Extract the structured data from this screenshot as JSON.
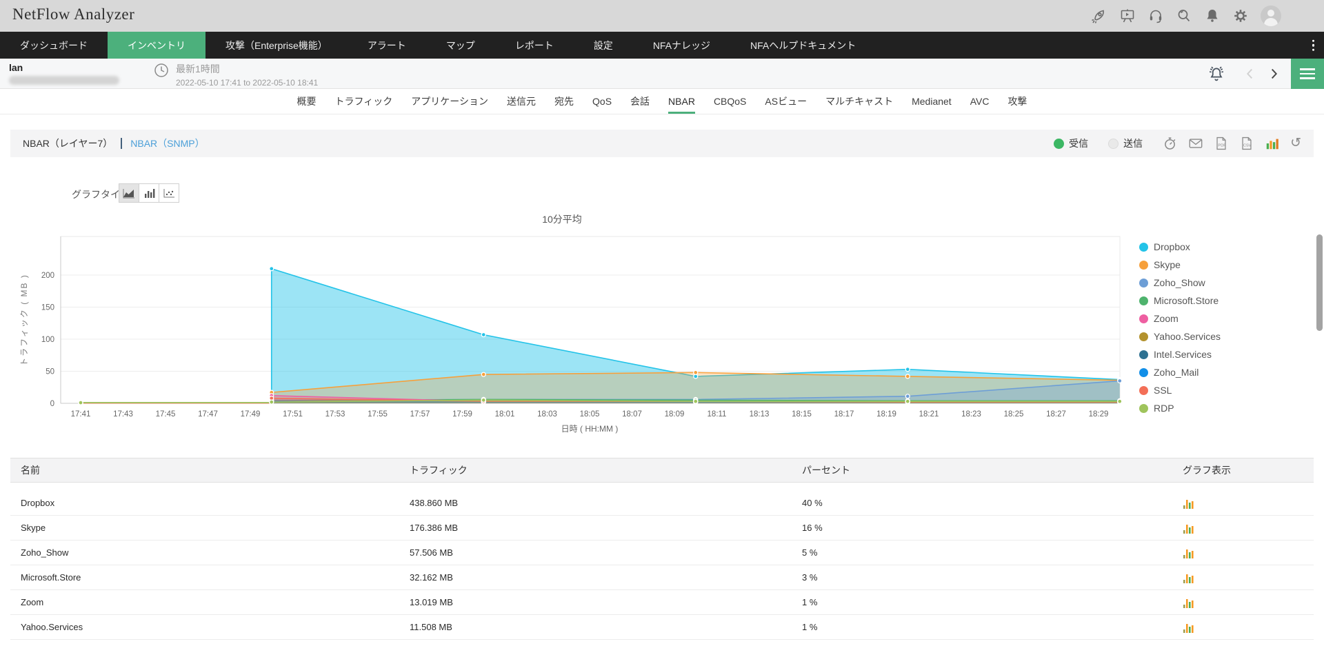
{
  "app": {
    "title": "NetFlow Analyzer"
  },
  "topbar": {
    "icons": [
      "rocket",
      "presentation",
      "headset",
      "search",
      "notifications",
      "settings"
    ]
  },
  "nav": {
    "items": [
      {
        "label": "ダッシュボード",
        "active": false
      },
      {
        "label": "インベントリ",
        "active": true
      },
      {
        "label": "攻撃（Enterprise機能）",
        "active": false
      },
      {
        "label": "アラート",
        "active": false
      },
      {
        "label": "マップ",
        "active": false
      },
      {
        "label": "レポート",
        "active": false
      },
      {
        "label": "設定",
        "active": false
      },
      {
        "label": "NFAナレッジ",
        "active": false
      },
      {
        "label": "NFAヘルプドキュメント",
        "active": false
      }
    ]
  },
  "subheader": {
    "device_name": "lan",
    "time_label": "最新1時間",
    "time_range": "2022-05-10 17:41 to 2022-05-10 18:41"
  },
  "view_tabs": {
    "active": "NBAR",
    "items": [
      "概要",
      "トラフィック",
      "アプリケーション",
      "送信元",
      "宛先",
      "QoS",
      "会話",
      "NBAR",
      "CBQoS",
      "ASビュー",
      "マルチキャスト",
      "Medianet",
      "AVC",
      "攻撃"
    ]
  },
  "section": {
    "title_primary": "NBAR（レイヤー7）",
    "title_secondary": "NBAR（SNMP）",
    "direction_options": [
      {
        "label": "受信",
        "selected": true
      },
      {
        "label": "送信",
        "selected": false
      }
    ],
    "tool_icons": [
      "schedule",
      "email",
      "pdf-export",
      "csv-export",
      "bar-chart",
      "refresh"
    ]
  },
  "graph_type": {
    "label": "グラフタイプ",
    "options": [
      "area",
      "bar",
      "scatter"
    ],
    "active": "area"
  },
  "chart_data": {
    "type": "area",
    "title": "10分平均",
    "xlabel": "日時 ( HH:MM )",
    "ylabel": "トラフィック ( MB )",
    "ylim": [
      0,
      250
    ],
    "yticks": [
      0,
      50,
      100,
      150,
      200
    ],
    "grid": true,
    "legend_position": "right",
    "x_tick_labels": [
      "17:41",
      "17:43",
      "17:45",
      "17:47",
      "17:49",
      "17:51",
      "17:53",
      "17:55",
      "17:57",
      "17:59",
      "18:01",
      "18:03",
      "18:05",
      "18:07",
      "18:09",
      "18:11",
      "18:13",
      "18:15",
      "18:17",
      "18:19",
      "18:21",
      "18:23",
      "18:25",
      "18:27",
      "18:29"
    ],
    "x": [
      "17:41",
      "17:50",
      "18:00",
      "18:10",
      "18:20",
      "18:30"
    ],
    "series": [
      {
        "name": "Dropbox",
        "color": "#23c3e8",
        "values": [
          1,
          210,
          107,
          42,
          53,
          37
        ]
      },
      {
        "name": "Skype",
        "color": "#f6a03b",
        "values": [
          0.5,
          17,
          45,
          48,
          42,
          36
        ]
      },
      {
        "name": "Zoho_Show",
        "color": "#6d9ed6",
        "values": [
          0.3,
          5,
          6,
          6,
          11,
          35
        ]
      },
      {
        "name": "Microsoft.Store",
        "color": "#4eb36d",
        "values": [
          0.4,
          4,
          6,
          5,
          4,
          4
        ]
      },
      {
        "name": "Zoom",
        "color": "#ee5fa1",
        "values": [
          0.3,
          12,
          3,
          2,
          2,
          2
        ]
      },
      {
        "name": "Yahoo.Services",
        "color": "#b3922d",
        "values": [
          1,
          2,
          2,
          2,
          2,
          2
        ]
      },
      {
        "name": "Intel.Services",
        "color": "#2e7191",
        "values": [
          0.3,
          2,
          2,
          2,
          2,
          3
        ]
      },
      {
        "name": "Zoho_Mail",
        "color": "#128fe8",
        "values": [
          0.3,
          3,
          2,
          2,
          2,
          2
        ]
      },
      {
        "name": "SSL",
        "color": "#f36f57",
        "values": [
          0.3,
          8,
          3,
          3,
          2,
          2
        ]
      },
      {
        "name": "RDP",
        "color": "#9fc45c",
        "values": [
          1,
          2,
          5,
          3,
          3,
          3
        ]
      }
    ]
  },
  "table": {
    "columns": [
      "名前",
      "トラフィック",
      "パーセント",
      "グラフ表示"
    ],
    "rows": [
      {
        "name": "Dropbox",
        "traffic": "438.860 MB",
        "percent": "40 %"
      },
      {
        "name": "Skype",
        "traffic": "176.386 MB",
        "percent": "16 %"
      },
      {
        "name": "Zoho_Show",
        "traffic": "57.506 MB",
        "percent": "5 %"
      },
      {
        "name": "Microsoft.Store",
        "traffic": "32.162 MB",
        "percent": "3 %"
      },
      {
        "name": "Zoom",
        "traffic": "13.019 MB",
        "percent": "1 %"
      },
      {
        "name": "Yahoo.Services",
        "traffic": "11.508 MB",
        "percent": "1 %"
      }
    ]
  },
  "colors": {
    "accent_green": "#4cb07c",
    "link_blue": "#4b9fd8",
    "nav_bg": "#212121",
    "radio_green": "#3cb764"
  }
}
